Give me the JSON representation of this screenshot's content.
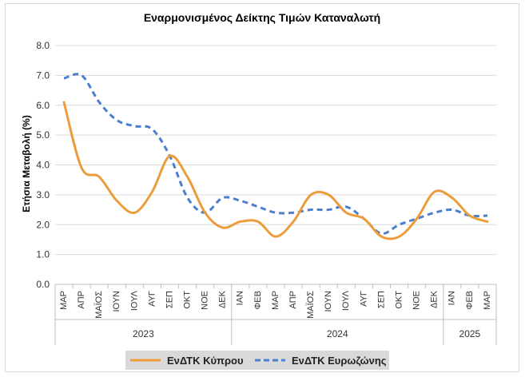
{
  "chart_data": {
    "type": "line",
    "title": "Εναρμονισμένος Δείκτης Τιμών Καταναλωτή",
    "ylabel": "Ετήσια Μεταβολή (%)",
    "xlabel": "",
    "ylim": [
      0,
      8
    ],
    "yticks": [
      "0.0",
      "1.0",
      "2.0",
      "3.0",
      "4.0",
      "5.0",
      "6.0",
      "7.0",
      "8.0"
    ],
    "grid": true,
    "legend_position": "bottom",
    "categories": [
      "ΜΑΡ",
      "ΑΠΡ",
      "ΜΑΪΟΣ",
      "ΙΟΥΝ",
      "ΙΟΥΛ",
      "ΑΥΓ",
      "ΣΕΠ",
      "ΟΚΤ",
      "ΝΟΕ",
      "ΔΕΚ",
      "ΙΑΝ",
      "ΦΕΒ",
      "ΜΑΡ",
      "ΑΠΡ",
      "ΜΑΪΟΣ",
      "ΙΟΥΝ",
      "ΙΟΥΛ",
      "ΑΥΓ",
      "ΣΕΠ",
      "ΟΚΤ",
      "ΝΟΕ",
      "ΔΕΚ",
      "ΙΑΝ",
      "ΦΕΒ",
      "ΜΑΡ"
    ],
    "year_groups": [
      {
        "label": "2023",
        "count": 10
      },
      {
        "label": "2024",
        "count": 12
      },
      {
        "label": "2025",
        "count": 3
      }
    ],
    "series": [
      {
        "name": "ΕνΔΤΚ Κύπρου",
        "color": "#ed9c3c",
        "style": "solid",
        "values": [
          6.1,
          3.9,
          3.6,
          2.8,
          2.4,
          3.1,
          4.3,
          3.6,
          2.4,
          1.9,
          2.1,
          2.1,
          1.6,
          2.1,
          3.0,
          3.0,
          2.4,
          2.2,
          1.6,
          1.6,
          2.2,
          3.1,
          2.9,
          2.3,
          2.1
        ]
      },
      {
        "name": "ΕνΔΤΚ Ευρωζώνης",
        "color": "#4a7fcf",
        "style": "dashed",
        "values": [
          6.9,
          7.0,
          6.1,
          5.5,
          5.3,
          5.2,
          4.3,
          2.9,
          2.4,
          2.9,
          2.8,
          2.6,
          2.4,
          2.4,
          2.5,
          2.5,
          2.6,
          2.2,
          1.7,
          2.0,
          2.2,
          2.4,
          2.5,
          2.3,
          2.3
        ]
      }
    ]
  }
}
